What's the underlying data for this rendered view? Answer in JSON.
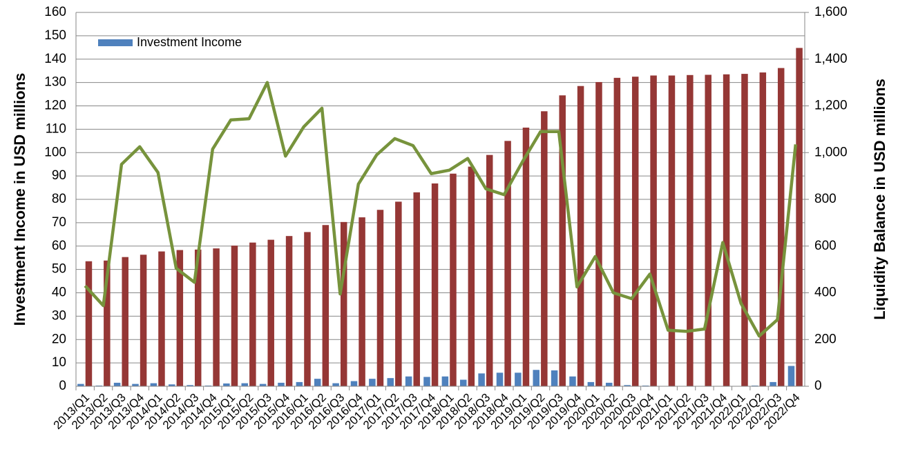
{
  "chart_data": {
    "type": "bar",
    "y_label": "Investment Income in USD millions",
    "y2_label": "Liquidity Balance in USD millions",
    "categories": [
      "2013/Q1",
      "2013/Q2",
      "2013/Q3",
      "2013/Q4",
      "2014/Q1",
      "2014/Q2",
      "2014/Q3",
      "2014/Q4",
      "2015/Q1",
      "2015/Q2",
      "2015/Q3",
      "2015/Q4",
      "2016/Q1",
      "2016/Q2",
      "2016/Q3",
      "2016/Q4",
      "2017/Q1",
      "2017/Q2",
      "2017/Q3",
      "2017/Q4",
      "2018/Q1",
      "2018/Q2",
      "2018/Q3",
      "2018/Q4",
      "2019/Q1",
      "2019/Q2",
      "2019/Q3",
      "2019/Q4",
      "2020/Q1",
      "2020/Q2",
      "2020/Q3",
      "2020/Q4",
      "2021/Q1",
      "2021/Q2",
      "2021/Q3",
      "2021/Q4",
      "2022/Q1",
      "2022/Q2",
      "2022/Q3",
      "2022/Q4"
    ],
    "series": [
      {
        "name": "Investment Income",
        "type": "bar",
        "color": "#4f81bd",
        "values": [
          1.0,
          0.3,
          1.5,
          1.0,
          1.3,
          0.8,
          0.5,
          0.3,
          1.2,
          1.3,
          1.0,
          1.5,
          1.8,
          3.2,
          1.3,
          2.2,
          3.2,
          3.5,
          4.2,
          4.0,
          4.2,
          2.8,
          5.5,
          5.8,
          5.8,
          7.0,
          6.8,
          4.2,
          1.8,
          1.5,
          0.5,
          0.3,
          0,
          0,
          0,
          0,
          0,
          0.3,
          1.8,
          8.7
        ]
      },
      {
        "type": "bar",
        "axis": "y2",
        "color": "#953735",
        "values": [
          535,
          538,
          553,
          563,
          577,
          583,
          585,
          590,
          602,
          615,
          627,
          643,
          660,
          690,
          703,
          723,
          755,
          790,
          830,
          868,
          910,
          940,
          990,
          1050,
          1107,
          1177,
          1245,
          1285,
          1302,
          1320,
          1325,
          1330,
          1330,
          1332,
          1333,
          1335,
          1337,
          1343,
          1362,
          1448
        ]
      },
      {
        "type": "line",
        "axis": "y2",
        "color": "#77933c",
        "values": [
          430,
          345,
          950,
          1025,
          915,
          505,
          445,
          1015,
          1140,
          1145,
          1300,
          985,
          1110,
          1190,
          395,
          865,
          990,
          1060,
          1030,
          910,
          925,
          975,
          845,
          820,
          960,
          1090,
          1090,
          425,
          555,
          400,
          375,
          480,
          240,
          235,
          245,
          615,
          355,
          215,
          285,
          1035
        ]
      }
    ],
    "ylim": [
      0,
      160
    ],
    "yticks": [
      0,
      10,
      20,
      30,
      40,
      50,
      60,
      70,
      80,
      90,
      100,
      110,
      120,
      130,
      140,
      150,
      160
    ],
    "y2lim": [
      0,
      1600
    ],
    "y2ticks": [
      0,
      200,
      400,
      600,
      800,
      {
        "value": 1000,
        "label": "1,000"
      },
      {
        "value": 1200,
        "label": "1,200"
      },
      {
        "value": 1400,
        "label": "1,400"
      },
      {
        "value": 1600,
        "label": "1,600"
      }
    ],
    "grid": true,
    "legend": "top-left"
  }
}
